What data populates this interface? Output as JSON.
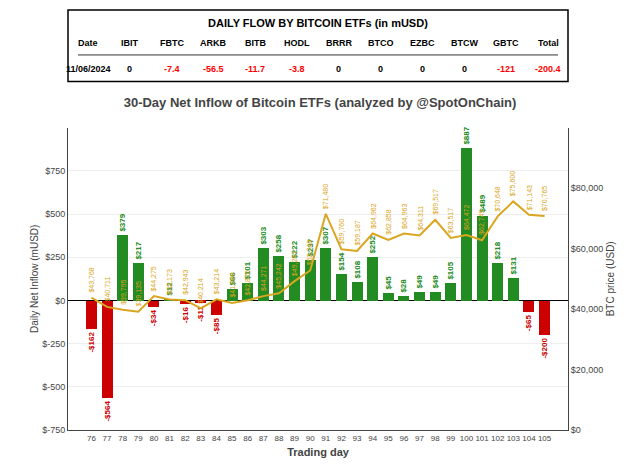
{
  "chart_data": {
    "type": "bar",
    "title": "30-Day Net Inflow of Bitcoin ETFs (analyzed by @SpotOnChain)",
    "table": {
      "title": "DAILY FLOW BY BITCOIN ETFs (in mUSD)",
      "headers": [
        "Date",
        "IBIT",
        "FBTC",
        "ARKB",
        "BITB",
        "HODL",
        "BRRR",
        "BTCO",
        "EZBC",
        "BTCW",
        "GBTC",
        "Total"
      ],
      "row": [
        "11/06/2024",
        "0",
        "-7.4",
        "-56.5",
        "-11.7",
        "-3.8",
        "0",
        "0",
        "0",
        "0",
        "-121",
        "-200.4"
      ],
      "colors": [
        "black",
        "black",
        "red",
        "red",
        "red",
        "red",
        "black",
        "black",
        "black",
        "black",
        "red",
        "red"
      ]
    },
    "x": [
      76,
      77,
      78,
      79,
      80,
      81,
      82,
      83,
      84,
      85,
      86,
      87,
      88,
      89,
      90,
      91,
      92,
      93,
      94,
      95,
      96,
      97,
      98,
      99,
      100,
      101,
      102,
      103,
      104,
      105
    ],
    "xlim": [
      74.5,
      106.5
    ],
    "xticks": [
      76,
      77,
      78,
      79,
      80,
      81,
      82,
      83,
      84,
      85,
      86,
      87,
      88,
      89,
      90,
      91,
      92,
      93,
      94,
      95,
      96,
      97,
      98,
      99,
      100,
      101,
      102,
      103,
      104,
      105
    ],
    "xlabel": "Trading day",
    "ylabel": "Daily Net Inflow (mUSD)",
    "y2label": "BTC price (USD)",
    "ylim": [
      -750,
      1000
    ],
    "yticks": [
      {
        "value": -750,
        "label": "$-750"
      },
      {
        "value": -500,
        "label": "$-500"
      },
      {
        "value": -250,
        "label": "$-250"
      },
      {
        "value": 0,
        "label": "$0"
      },
      {
        "value": 250,
        "label": "$250"
      },
      {
        "value": 500,
        "label": "$500"
      },
      {
        "value": 750,
        "label": "$750"
      }
    ],
    "y2lim": [
      0,
      100000
    ],
    "y2ticks": [
      {
        "value": 0,
        "label": "$0"
      },
      {
        "value": 20000,
        "label": "$20,000"
      },
      {
        "value": 40000,
        "label": "$40,000"
      },
      {
        "value": 60000,
        "label": "$60,000"
      },
      {
        "value": 80000,
        "label": "$80,000"
      }
    ],
    "grid": true,
    "data_labels": true,
    "series": [
      {
        "type": "bar",
        "colors": [
          "#CC0000",
          "#CC0000",
          "#228B22",
          "#228B22",
          "#CC0000",
          "#228B22",
          "#CC0000",
          "#CC0000",
          "#CC0000",
          "#228B22",
          "#228B22",
          "#228B22",
          "#228B22",
          "#228B22",
          "#228B22",
          "#228B22",
          "#228B22",
          "#228B22",
          "#228B22",
          "#228B22",
          "#228B22",
          "#228B22",
          "#228B22",
          "#228B22",
          "#228B22",
          "#228B22",
          "#228B22",
          "#228B22",
          "#CC0000",
          "#CC0000"
        ],
        "values": [
          -162,
          -564,
          379,
          217,
          -34,
          12,
          -16,
          -11,
          -85,
          66,
          101,
          303,
          258,
          222,
          237,
          307,
          154,
          108,
          252,
          45,
          28,
          49,
          49,
          105,
          887,
          489,
          218,
          131,
          -65,
          -200
        ],
        "value_labels": [
          "-$162",
          "-$564",
          "$379",
          "$217",
          "-$34",
          "$12",
          "-$16",
          "-$11",
          "-$85",
          "$66",
          "$101",
          "$303",
          "$258",
          "$222",
          "$237",
          "$307",
          "$154",
          "$108",
          "$252",
          "$45",
          "$28",
          "$49",
          "$49",
          "$105",
          "$887",
          "$489",
          "$218",
          "$131",
          "-$65",
          "-$200"
        ]
      },
      {
        "type": "line",
        "axis": "y2",
        "color": "#DAA520",
        "values": [
          43768,
          40711,
          39795,
          39135,
          44275,
          43173,
          42943,
          40214,
          43214,
          41989,
          42876,
          44271,
          45242,
          49241,
          52748,
          71480,
          59760,
          59187,
          64962,
          62858,
          64963,
          64311,
          69517,
          63517,
          64472,
          62749,
          70648,
          75600,
          71143,
          70765
        ],
        "value_labels": [
          "$43,768",
          "$40,711",
          "$39,795",
          "$39,135",
          "$44,275",
          "$43,173",
          "$42,943",
          "$40,214",
          "$43,214",
          "$41,989",
          "$42,876",
          "$44,271",
          "$45,242",
          "$49,241",
          "$52,748",
          "$71,480",
          "$59,760",
          "$59,187",
          "$64,962",
          "$62,858",
          "$64,963",
          "$64,311",
          "$69,517",
          "$63,517",
          "$64,472",
          "$62,749",
          "$70,648",
          "$75,600",
          "$71,143",
          "$70,765"
        ]
      }
    ]
  }
}
